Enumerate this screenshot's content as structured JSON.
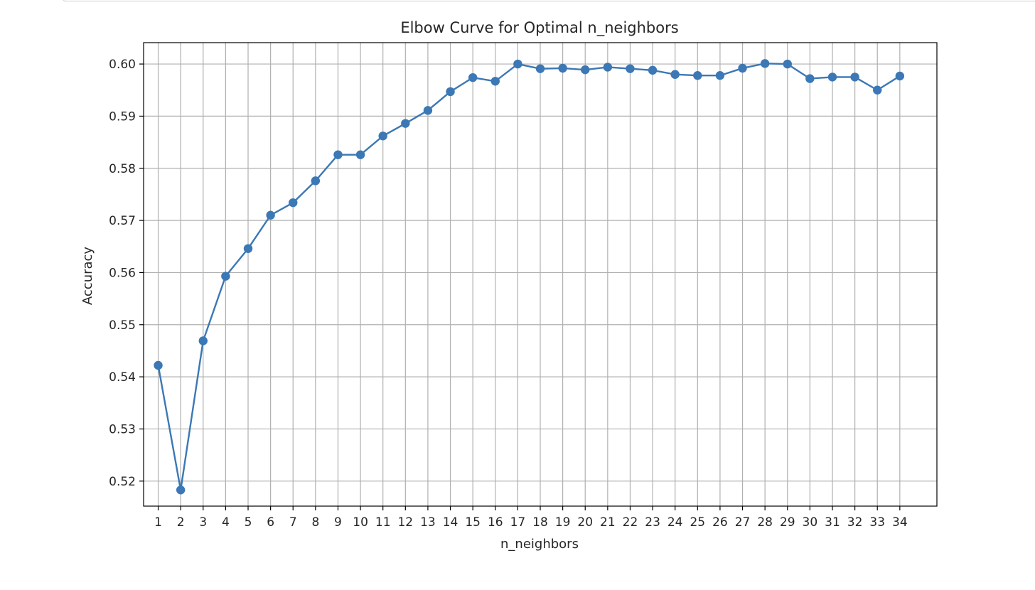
{
  "chart_data": {
    "type": "line",
    "title": "Elbow Curve for Optimal n_neighbors",
    "xlabel": "n_neighbors",
    "ylabel": "Accuracy",
    "x": [
      1,
      2,
      3,
      4,
      5,
      6,
      7,
      8,
      9,
      10,
      11,
      12,
      13,
      14,
      15,
      16,
      17,
      18,
      19,
      20,
      21,
      22,
      23,
      24,
      25,
      26,
      27,
      28,
      29,
      30,
      31,
      32,
      33,
      34
    ],
    "series": [
      {
        "values": [
          0.5422,
          0.5183,
          0.5469,
          0.5593,
          0.5646,
          0.571,
          0.5734,
          0.5776,
          0.5826,
          0.5826,
          0.5862,
          0.5886,
          0.5911,
          0.5947,
          0.5974,
          0.5967,
          0.6,
          0.5991,
          0.5992,
          0.5989,
          0.5994,
          0.5991,
          0.5988,
          0.598,
          0.5978,
          0.5978,
          0.5992,
          0.6001,
          0.6,
          0.5972,
          0.5975,
          0.5975,
          0.595,
          0.5977
        ],
        "color": "#3b78b5",
        "marker": "circle"
      }
    ],
    "ylim": [
      0.5152,
      0.6041
    ],
    "xlim": [
      0.35,
      35.65
    ],
    "yticks": [
      "0.52",
      "0.53",
      "0.54",
      "0.55",
      "0.56",
      "0.57",
      "0.58",
      "0.59",
      "0.60"
    ],
    "xticks": [
      "1",
      "2",
      "3",
      "4",
      "5",
      "6",
      "7",
      "8",
      "9",
      "10",
      "11",
      "12",
      "13",
      "14",
      "15",
      "16",
      "17",
      "18",
      "19",
      "20",
      "21",
      "22",
      "23",
      "24",
      "25",
      "26",
      "27",
      "28",
      "29",
      "30",
      "31",
      "32",
      "33",
      "34"
    ],
    "grid": true,
    "grid_color": "#b0b0b0",
    "axes_color": "#000000"
  }
}
